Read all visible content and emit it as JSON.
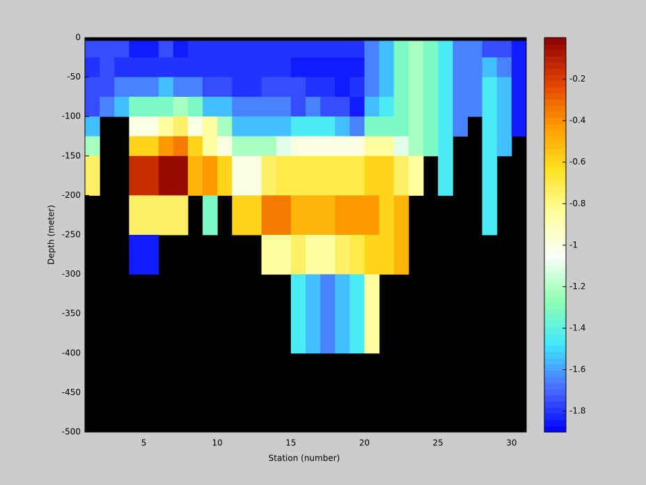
{
  "chart_data": {
    "type": "heatmap",
    "xlabel": "Station (number)",
    "ylabel": "Depth (meter)",
    "x_edges": [
      1,
      2,
      3,
      4,
      5,
      6,
      7,
      8,
      9,
      10,
      11,
      12,
      13,
      14,
      15,
      16,
      17,
      18,
      19,
      20,
      21,
      22,
      23,
      24,
      25,
      26,
      27,
      28,
      29,
      30,
      31
    ],
    "y_edges": [
      0,
      -4,
      -25,
      -50,
      -75,
      -100,
      -125,
      -150,
      -200,
      -250,
      -300,
      -400,
      -500
    ],
    "xlim": [
      1,
      31
    ],
    "xticks": [
      5,
      10,
      15,
      20,
      25,
      30
    ],
    "ylim": [
      -500,
      0
    ],
    "yticks": [
      0,
      -50,
      -100,
      -150,
      -200,
      -250,
      -300,
      -350,
      -400,
      -450,
      -500
    ],
    "clim": [
      -1.9,
      0
    ],
    "cticks": [
      -0.2,
      -0.4,
      -0.6,
      -0.8,
      -1,
      -1.2,
      -1.4,
      -1.6,
      -1.8
    ],
    "colormap": [
      "#0000ff",
      "#4a6cff",
      "#40e8ff",
      "#90ffb0",
      "#f8fff8",
      "#ffffa0",
      "#ffe020",
      "#ff9a00",
      "#e04000",
      "#8c0000"
    ],
    "null_color": "#000000",
    "values": [
      [
        null,
        null,
        null,
        null,
        null,
        null,
        null,
        null,
        null,
        null,
        null,
        null,
        null,
        null,
        null,
        null,
        null,
        null,
        null,
        null,
        null,
        null,
        null,
        null,
        null,
        null,
        null,
        null,
        null,
        null
      ],
      [
        -1.75,
        -1.75,
        -1.75,
        -1.85,
        -1.85,
        -1.75,
        -1.85,
        -1.8,
        -1.8,
        -1.8,
        -1.8,
        -1.8,
        -1.8,
        -1.8,
        -1.8,
        -1.8,
        -1.8,
        -1.8,
        -1.8,
        -1.65,
        -1.55,
        -1.32,
        -1.22,
        -1.32,
        -1.45,
        -1.65,
        -1.65,
        -1.75,
        -1.75,
        -1.85
      ],
      [
        -1.8,
        -1.75,
        -1.8,
        -1.8,
        -1.8,
        -1.8,
        -1.8,
        -1.8,
        -1.8,
        -1.8,
        -1.8,
        -1.8,
        -1.8,
        -1.8,
        -1.85,
        -1.85,
        -1.85,
        -1.85,
        -1.85,
        -1.65,
        -1.55,
        -1.32,
        -1.22,
        -1.32,
        -1.45,
        -1.65,
        -1.65,
        -1.55,
        -1.65,
        -1.85
      ],
      [
        -1.75,
        -1.75,
        -1.65,
        -1.65,
        -1.65,
        -1.55,
        -1.65,
        -1.65,
        -1.75,
        -1.75,
        -1.8,
        -1.8,
        -1.75,
        -1.75,
        -1.75,
        -1.8,
        -1.8,
        -1.85,
        -1.8,
        -1.65,
        -1.55,
        -1.32,
        -1.22,
        -1.32,
        -1.45,
        -1.65,
        -1.65,
        -1.45,
        -1.55,
        -1.85
      ],
      [
        -1.75,
        -1.65,
        -1.55,
        -1.32,
        -1.32,
        -1.32,
        -1.22,
        -1.32,
        -1.55,
        -1.55,
        -1.65,
        -1.65,
        -1.65,
        -1.65,
        -1.75,
        -1.65,
        -1.75,
        -1.75,
        -1.85,
        -1.55,
        -1.45,
        -1.32,
        -1.22,
        -1.32,
        -1.45,
        -1.65,
        -1.65,
        -1.45,
        -1.55,
        -1.85
      ],
      [
        -1.55,
        null,
        null,
        -1,
        -1,
        -0.85,
        -0.75,
        -1,
        -0.85,
        -1.22,
        -1.55,
        -1.55,
        -1.55,
        -1.55,
        -1.45,
        -1.45,
        -1.45,
        -1.55,
        -1.65,
        -1.32,
        -1.32,
        -1.32,
        -1.22,
        -1.32,
        -1.45,
        -1.65,
        null,
        -1.45,
        -1.55,
        -1.85
      ],
      [
        -1.22,
        null,
        null,
        -0.6,
        -0.6,
        -0.42,
        -0.35,
        -0.6,
        -0.85,
        -1,
        -1.22,
        -1.22,
        -1.22,
        -1.1,
        -1,
        -1,
        -1,
        -1,
        -1,
        -0.85,
        -0.85,
        -1.1,
        -1.22,
        -1.32,
        -1.45,
        null,
        null,
        -1.45,
        -1.55,
        null
      ],
      [
        -0.75,
        null,
        null,
        -0.15,
        -0.15,
        -0.03,
        -0.03,
        -0.5,
        -0.42,
        -0.6,
        -1,
        -1,
        -0.75,
        -0.7,
        -0.7,
        -0.7,
        -0.7,
        -0.7,
        -0.7,
        -0.6,
        -0.6,
        -0.75,
        -0.85,
        null,
        -1.45,
        null,
        null,
        -1.45,
        null,
        null
      ],
      [
        null,
        null,
        null,
        -0.75,
        -0.75,
        -0.75,
        -0.75,
        null,
        -1.32,
        null,
        -0.6,
        -0.6,
        -0.35,
        -0.35,
        -0.5,
        -0.5,
        -0.5,
        -0.42,
        -0.42,
        -0.42,
        -0.6,
        -0.5,
        null,
        null,
        null,
        null,
        null,
        -1.45,
        null,
        null
      ],
      [
        null,
        null,
        null,
        -1.85,
        -1.85,
        null,
        null,
        null,
        null,
        null,
        null,
        null,
        -0.85,
        -0.85,
        -0.75,
        -0.85,
        -0.85,
        -0.75,
        -0.7,
        -0.6,
        -0.6,
        -0.5,
        null,
        null,
        null,
        null,
        null,
        null,
        null,
        null
      ],
      [
        null,
        null,
        null,
        null,
        null,
        null,
        null,
        null,
        null,
        null,
        null,
        null,
        null,
        null,
        -1.45,
        -1.55,
        -1.65,
        -1.55,
        -1.45,
        -0.85,
        null,
        null,
        null,
        null,
        null,
        null,
        null,
        null,
        null,
        null
      ],
      [
        null,
        null,
        null,
        null,
        null,
        null,
        null,
        null,
        null,
        null,
        null,
        null,
        null,
        null,
        null,
        null,
        null,
        null,
        null,
        null,
        null,
        null,
        null,
        null,
        null,
        null,
        null,
        null,
        null,
        null
      ]
    ]
  }
}
